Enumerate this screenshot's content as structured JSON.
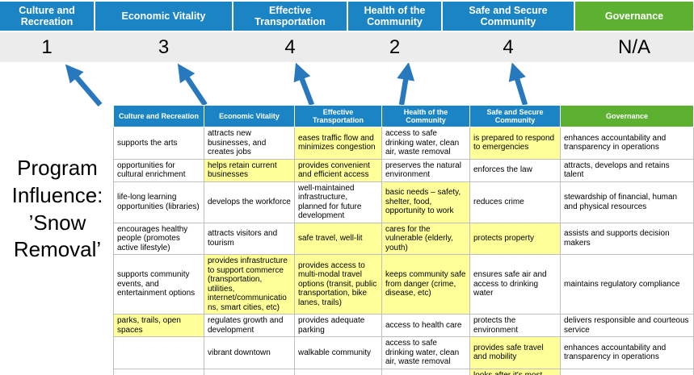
{
  "slide": {
    "title": "Program\nInfluence:\n’Snow\nRemoval’"
  },
  "colors": {
    "category_blue": "#1B84C5",
    "governance_green": "#5CB130",
    "highlight_yellow": "#FFFF99",
    "arrow_blue": "#2878BE",
    "score_strip_gray": "#ECECEC"
  },
  "scoreboard": {
    "columns": [
      {
        "label": "Culture and Recreation",
        "score": "1",
        "theme": "blue"
      },
      {
        "label": "Economic Vitality",
        "score": "3",
        "theme": "blue"
      },
      {
        "label": "Effective Transportation",
        "score": "4",
        "theme": "blue"
      },
      {
        "label": "Health of the Community",
        "score": "2",
        "theme": "blue"
      },
      {
        "label": "Safe and Secure Community",
        "score": "4",
        "theme": "blue"
      },
      {
        "label": "Governance",
        "score": "N/A",
        "theme": "green"
      }
    ]
  },
  "matrix": {
    "headers": [
      {
        "label": "Culture and Recreation",
        "theme": "blue"
      },
      {
        "label": "Economic Vitality",
        "theme": "blue"
      },
      {
        "label": "Effective Transportation",
        "theme": "blue"
      },
      {
        "label": "Health of the Community",
        "theme": "blue"
      },
      {
        "label": "Safe and Secure Community",
        "theme": "blue"
      },
      {
        "label": "Governance",
        "theme": "green"
      }
    ],
    "rows": [
      [
        {
          "text": "supports the arts",
          "highlight": false
        },
        {
          "text": "attracts new businesses, and creates jobs",
          "highlight": false
        },
        {
          "text": "eases traffic flow and minimizes congestion",
          "highlight": true
        },
        {
          "text": "access to safe drinking water, clean air, waste removal",
          "highlight": false
        },
        {
          "text": "is prepared to respond to emergencies",
          "highlight": true
        },
        {
          "text": "enhances accountability and transparency in operations",
          "highlight": false
        }
      ],
      [
        {
          "text": "opportunities for cultural enrichment",
          "highlight": false
        },
        {
          "text": "helps retain current businesses",
          "highlight": true
        },
        {
          "text": "provides convenient and efficient access",
          "highlight": true
        },
        {
          "text": "preserves the natural environment",
          "highlight": false
        },
        {
          "text": "enforces the law",
          "highlight": false
        },
        {
          "text": "attracts, develops and retains talent",
          "highlight": false
        }
      ],
      [
        {
          "text": "life-long learning opportunities (libraries)",
          "highlight": false
        },
        {
          "text": "develops the workforce",
          "highlight": false
        },
        {
          "text": "well-maintained infrastructure, planned for future development",
          "highlight": false
        },
        {
          "text": "basic needs – safety, shelter, food, opportunity to work",
          "highlight": true
        },
        {
          "text": "reduces crime",
          "highlight": false
        },
        {
          "text": "stewardship of financial, human and physical resources",
          "highlight": false
        }
      ],
      [
        {
          "text": "encourages healthy people (promotes active lifestyle)",
          "highlight": false
        },
        {
          "text": "attracts visitors and tourism",
          "highlight": false
        },
        {
          "text": "safe travel, well-lit",
          "highlight": true
        },
        {
          "text": "cares for the vulnerable (elderly, youth)",
          "highlight": true
        },
        {
          "text": "protects property",
          "highlight": true
        },
        {
          "text": "assists and supports decision makers",
          "highlight": false
        }
      ],
      [
        {
          "text": "supports community events, and entertainment options",
          "highlight": false
        },
        {
          "text": "provides infrastructure to support commerce (transportation, utilities, internet/communications, smart cities, etc)",
          "highlight": true
        },
        {
          "text": "provides access to multi-modal travel options (transit, public transportation, bike lanes, trails)",
          "highlight": true
        },
        {
          "text": "keeps community safe from danger (crime, disease, etc)",
          "highlight": true
        },
        {
          "text": "ensures safe air and access to drinking water",
          "highlight": false
        },
        {
          "text": "maintains regulatory compliance",
          "highlight": false
        }
      ],
      [
        {
          "text": "parks, trails, open spaces",
          "highlight": true
        },
        {
          "text": "regulates growth and development",
          "highlight": false
        },
        {
          "text": "provides adequate parking",
          "highlight": false
        },
        {
          "text": "access to health care",
          "highlight": false
        },
        {
          "text": "protects the environment",
          "highlight": false
        },
        {
          "text": "delivers responsible and courteous service",
          "highlight": false
        }
      ],
      [
        {
          "text": "",
          "highlight": false
        },
        {
          "text": "vibrant downtown",
          "highlight": false
        },
        {
          "text": "walkable community",
          "highlight": false
        },
        {
          "text": "access to safe drinking water, clean air, waste removal",
          "highlight": false
        },
        {
          "text": "provides safe travel and mobility",
          "highlight": true
        },
        {
          "text": "enhances accountability and transparency in operations",
          "highlight": false
        }
      ],
      [
        {
          "text": "",
          "highlight": false
        },
        {
          "text": "",
          "highlight": false
        },
        {
          "text": "",
          "highlight": false
        },
        {
          "text": "",
          "highlight": false
        },
        {
          "text": "looks after it's most vulnerable",
          "highlight": true
        },
        {
          "text": "",
          "highlight": false
        }
      ]
    ]
  }
}
